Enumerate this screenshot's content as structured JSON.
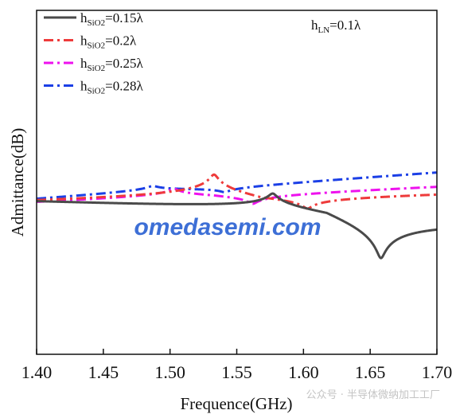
{
  "chart_data": {
    "type": "line",
    "xlabel": "Frequence(GHz)",
    "ylabel": "Admittance(dB)",
    "xlim": [
      1.4,
      1.7
    ],
    "ylim": [
      0,
      100
    ],
    "xticks": [
      "1.40",
      "1.45",
      "1.50",
      "1.55",
      "1.60",
      "1.65",
      "1.70"
    ],
    "yticks_shown": false,
    "grid": false,
    "legend_position": "top-left",
    "annotation": {
      "main": "h",
      "sub": "LN",
      "rest": "=0.1λ"
    },
    "series": [
      {
        "name_main": "h",
        "name_sub": "SiO2",
        "name_rest": "=0.15λ",
        "color": "#4a4a4a",
        "dash": "solid",
        "resonance": 1.577,
        "antiresonance": 1.658,
        "floor": 41,
        "peak": 88,
        "dip": 10,
        "end": 40
      },
      {
        "name_main": "h",
        "name_sub": "SiO2",
        "name_rest": "=0.2λ",
        "color": "#ee3b3b",
        "dash": "dashdot",
        "resonance": 1.533,
        "antiresonance": 1.603,
        "floor": 41,
        "peak": 90,
        "dip": 17,
        "end": 47
      },
      {
        "name_main": "h",
        "name_sub": "SiO2",
        "name_rest": "=0.25λ",
        "color": "#ee11ee",
        "dash": "dashdot",
        "resonance": 1.503,
        "antiresonance": 1.562,
        "floor": 41,
        "peak": 78,
        "dip": 14,
        "end": 49
      },
      {
        "name_main": "h",
        "name_sub": "SiO2",
        "name_rest": "=0.28λ",
        "color": "#1b3fe6",
        "dash": "dashdot",
        "resonance": 1.487,
        "antiresonance": 1.541,
        "floor": 42,
        "peak": 87,
        "dip": 23,
        "end": 53
      }
    ]
  },
  "watermark": "omedasemi.com",
  "footer": "公众号 · 半导体微纳加工工厂"
}
